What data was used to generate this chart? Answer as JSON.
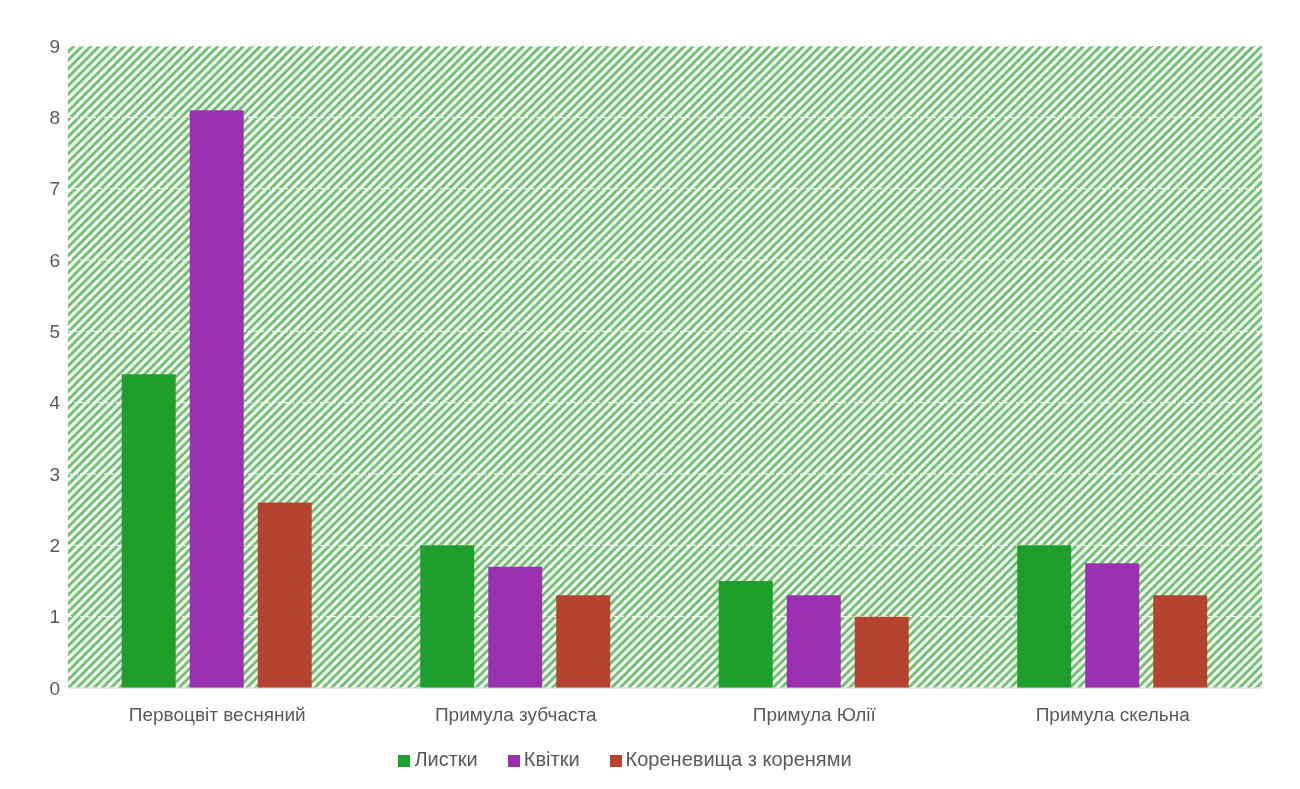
{
  "chart_data": {
    "type": "bar",
    "categories": [
      "Первоцвіт весняний",
      "Примула зубчаста",
      "Примула Юлії",
      "Примула скельна"
    ],
    "series": [
      {
        "name": "Листки",
        "color": "#1e9e2a",
        "values": [
          4.4,
          2.0,
          1.5,
          2.0
        ]
      },
      {
        "name": "Квітки",
        "color": "#9b30b0",
        "values": [
          8.1,
          1.7,
          1.3,
          1.75
        ]
      },
      {
        "name": "Кореневища з коренями",
        "color": "#b5432f",
        "values": [
          2.6,
          1.3,
          1.0,
          1.3
        ]
      }
    ],
    "ylim": [
      0,
      9
    ],
    "yticks": [
      0,
      1,
      2,
      3,
      4,
      5,
      6,
      7,
      8,
      9
    ],
    "grid": "y",
    "legend": "bottom"
  }
}
